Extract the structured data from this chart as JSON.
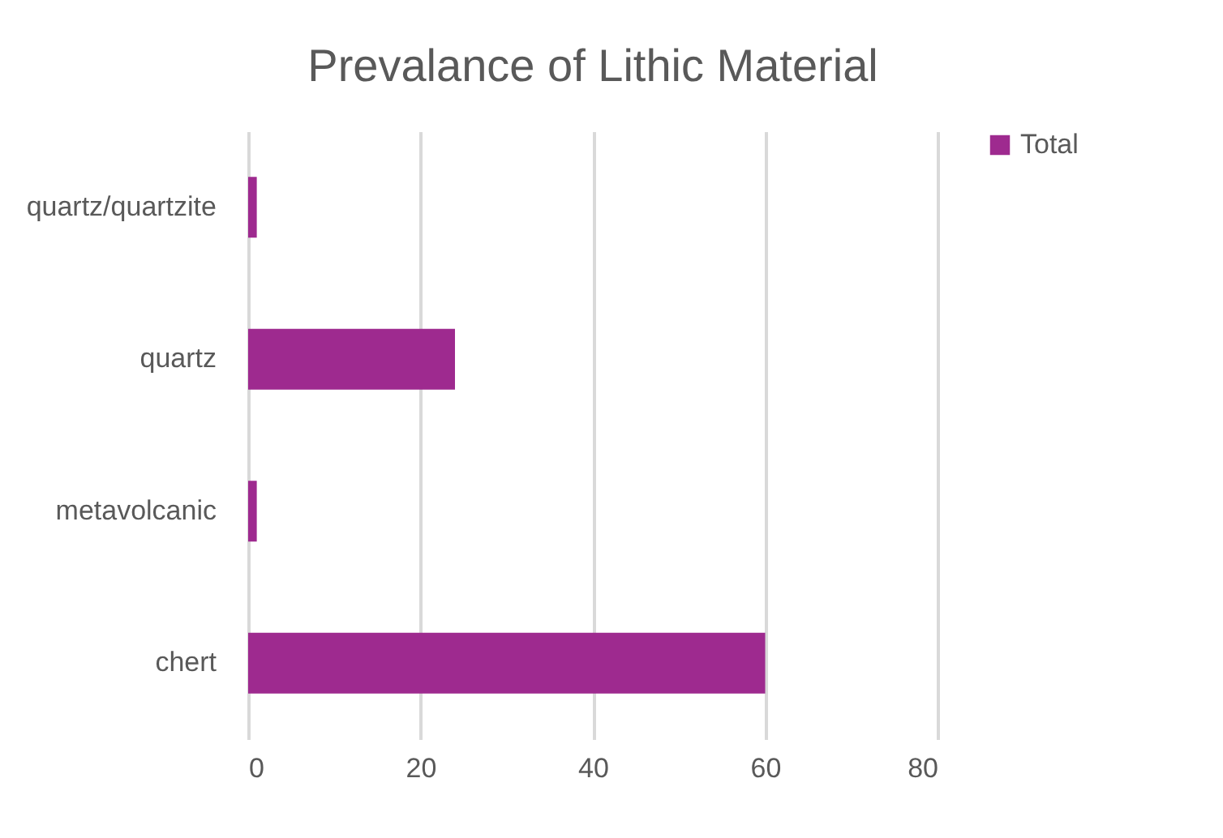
{
  "chart_data": {
    "type": "bar",
    "orientation": "horizontal",
    "title": "Prevalance of Lithic Material",
    "categories": [
      "quartz/quartzite",
      "quartz",
      "metavolcanic",
      "chert"
    ],
    "series": [
      {
        "name": "Total",
        "color": "#9e2a8f",
        "values": [
          1,
          24,
          1,
          60
        ]
      }
    ],
    "xlim": [
      0,
      80
    ],
    "xticks": [
      0,
      20,
      40,
      60,
      80
    ],
    "grid": "x",
    "legend": "right"
  }
}
